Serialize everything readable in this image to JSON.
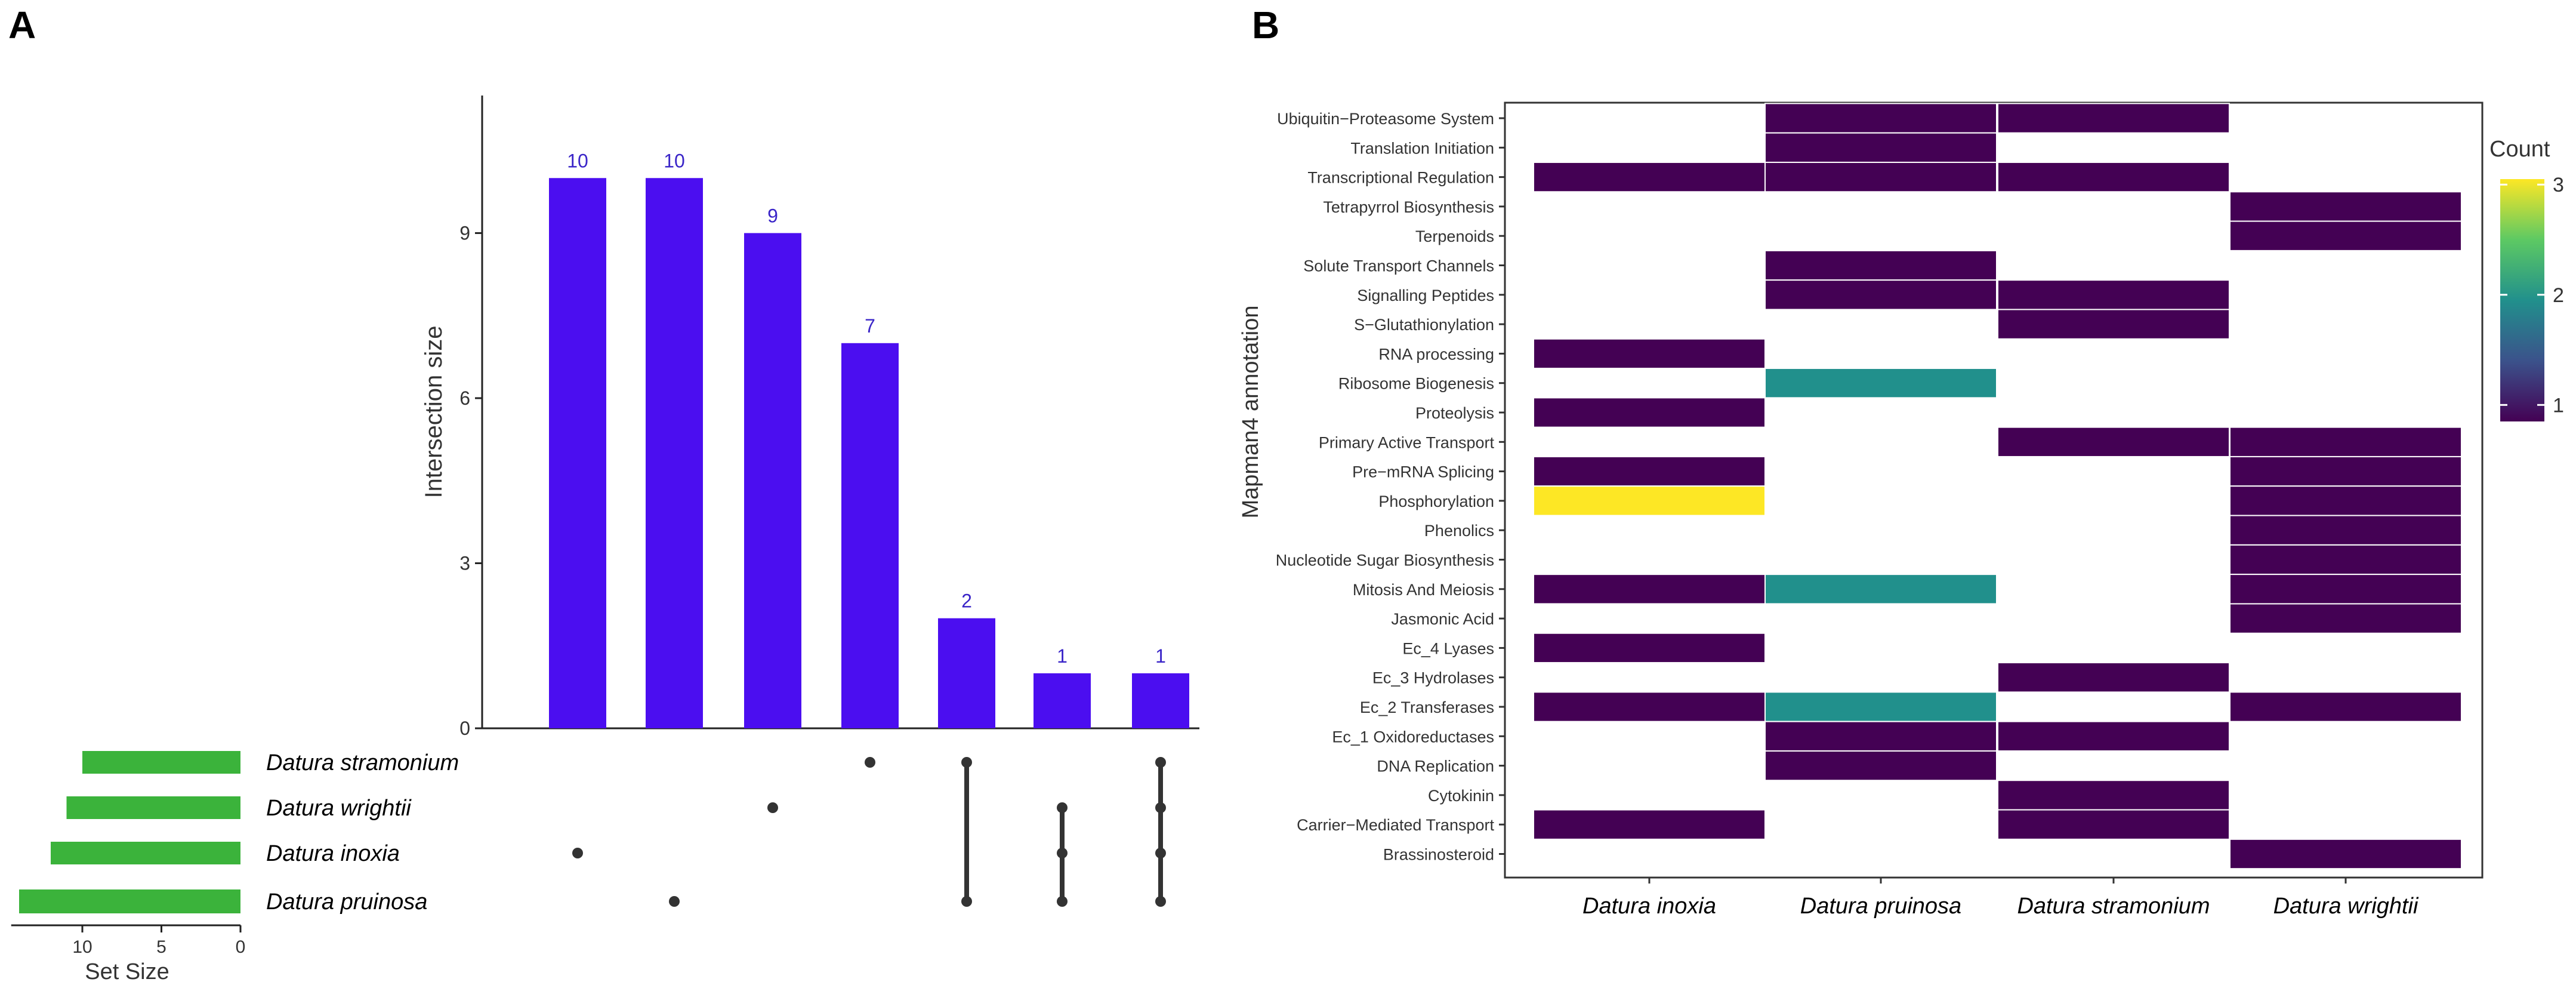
{
  "panels": {
    "left_label": "A",
    "right_label": "B"
  },
  "chart_data": [
    {
      "type": "bar",
      "subtype": "upset",
      "ylabel": "Intersection size",
      "ylim": [
        0,
        11.5
      ],
      "yticks": [
        0,
        3,
        6,
        9
      ],
      "ytick_labels": [
        "0",
        "3",
        "6",
        "9"
      ],
      "values": [
        10,
        10,
        9,
        7,
        2,
        1,
        1
      ],
      "value_labels": [
        "10",
        "10",
        "9",
        "7",
        "2",
        "1",
        "1"
      ],
      "sets": [
        "Datura stramonium",
        "Datura wrightii",
        "Datura inoxia",
        "Datura pruinosa"
      ],
      "set_sizes": [
        10,
        11,
        12,
        14
      ],
      "set_size_label": "Set Size",
      "set_size_ticks": [
        "10",
        "5",
        "0"
      ],
      "set_size_tick_values": [
        10,
        5,
        0
      ],
      "set_size_max": 14.5,
      "memberships": [
        [
          2
        ],
        [
          3
        ],
        [
          1
        ],
        [
          0
        ],
        [
          0,
          3
        ],
        [
          1,
          2,
          3
        ],
        [
          0,
          1,
          2,
          3
        ]
      ],
      "colors": {
        "bars": "#4b0ef0",
        "value_labels": "#3a25c8",
        "set_bars": "#3bb33b",
        "dots": "#333333"
      }
    },
    {
      "type": "heatmap",
      "ylabel": "Mapman4 annotation",
      "categories_x": [
        "Datura inoxia",
        "Datura pruinosa",
        "Datura stramonium",
        "Datura wrightii"
      ],
      "categories_y": [
        "Ubiquitin−Proteasome System",
        "Translation Initiation",
        "Transcriptional Regulation",
        "Tetrapyrrol Biosynthesis",
        "Terpenoids",
        "Solute Transport Channels",
        "Signalling Peptides",
        "S−Glutathionylation",
        "RNA processing",
        "Ribosome Biogenesis",
        "Proteolysis",
        "Primary Active Transport",
        "Pre−mRNA Splicing",
        "Phosphorylation",
        "Phenolics",
        "Nucleotide Sugar Biosynthesis",
        "Mitosis And Meiosis",
        "Jasmonic Acid",
        "Ec_4 Lyases",
        "Ec_3 Hydrolases",
        "Ec_2 Transferases",
        "Ec_1 Oxidoreductases",
        "DNA Replication",
        "Cytokinin",
        "Carrier−Mediated Transport",
        "Brassinosteroid"
      ],
      "values": [
        [
          0,
          1,
          1,
          0
        ],
        [
          0,
          1,
          0,
          0
        ],
        [
          1,
          1,
          1,
          0
        ],
        [
          0,
          0,
          0,
          1
        ],
        [
          0,
          0,
          0,
          1
        ],
        [
          0,
          1,
          0,
          0
        ],
        [
          0,
          1,
          1,
          0
        ],
        [
          0,
          0,
          1,
          0
        ],
        [
          1,
          0,
          0,
          0
        ],
        [
          0,
          2,
          0,
          0
        ],
        [
          1,
          0,
          0,
          0
        ],
        [
          0,
          0,
          1,
          1
        ],
        [
          1,
          0,
          0,
          1
        ],
        [
          3,
          0,
          0,
          1
        ],
        [
          0,
          0,
          0,
          1
        ],
        [
          0,
          0,
          0,
          1
        ],
        [
          1,
          2,
          0,
          1
        ],
        [
          0,
          0,
          0,
          1
        ],
        [
          1,
          0,
          0,
          0
        ],
        [
          0,
          0,
          1,
          0
        ],
        [
          1,
          2,
          0,
          1
        ],
        [
          0,
          1,
          1,
          0
        ],
        [
          0,
          1,
          0,
          0
        ],
        [
          0,
          0,
          1,
          0
        ],
        [
          1,
          0,
          1,
          0
        ],
        [
          0,
          0,
          0,
          1
        ]
      ],
      "legend": {
        "title": "Count",
        "ticks": [
          1,
          2,
          3
        ],
        "tick_labels": [
          "1",
          "2",
          "3"
        ],
        "min": 0.85,
        "max": 3.05
      },
      "colors": {
        "c1": "#440154",
        "c2": "#21908c",
        "c3": "#fde725"
      }
    }
  ]
}
